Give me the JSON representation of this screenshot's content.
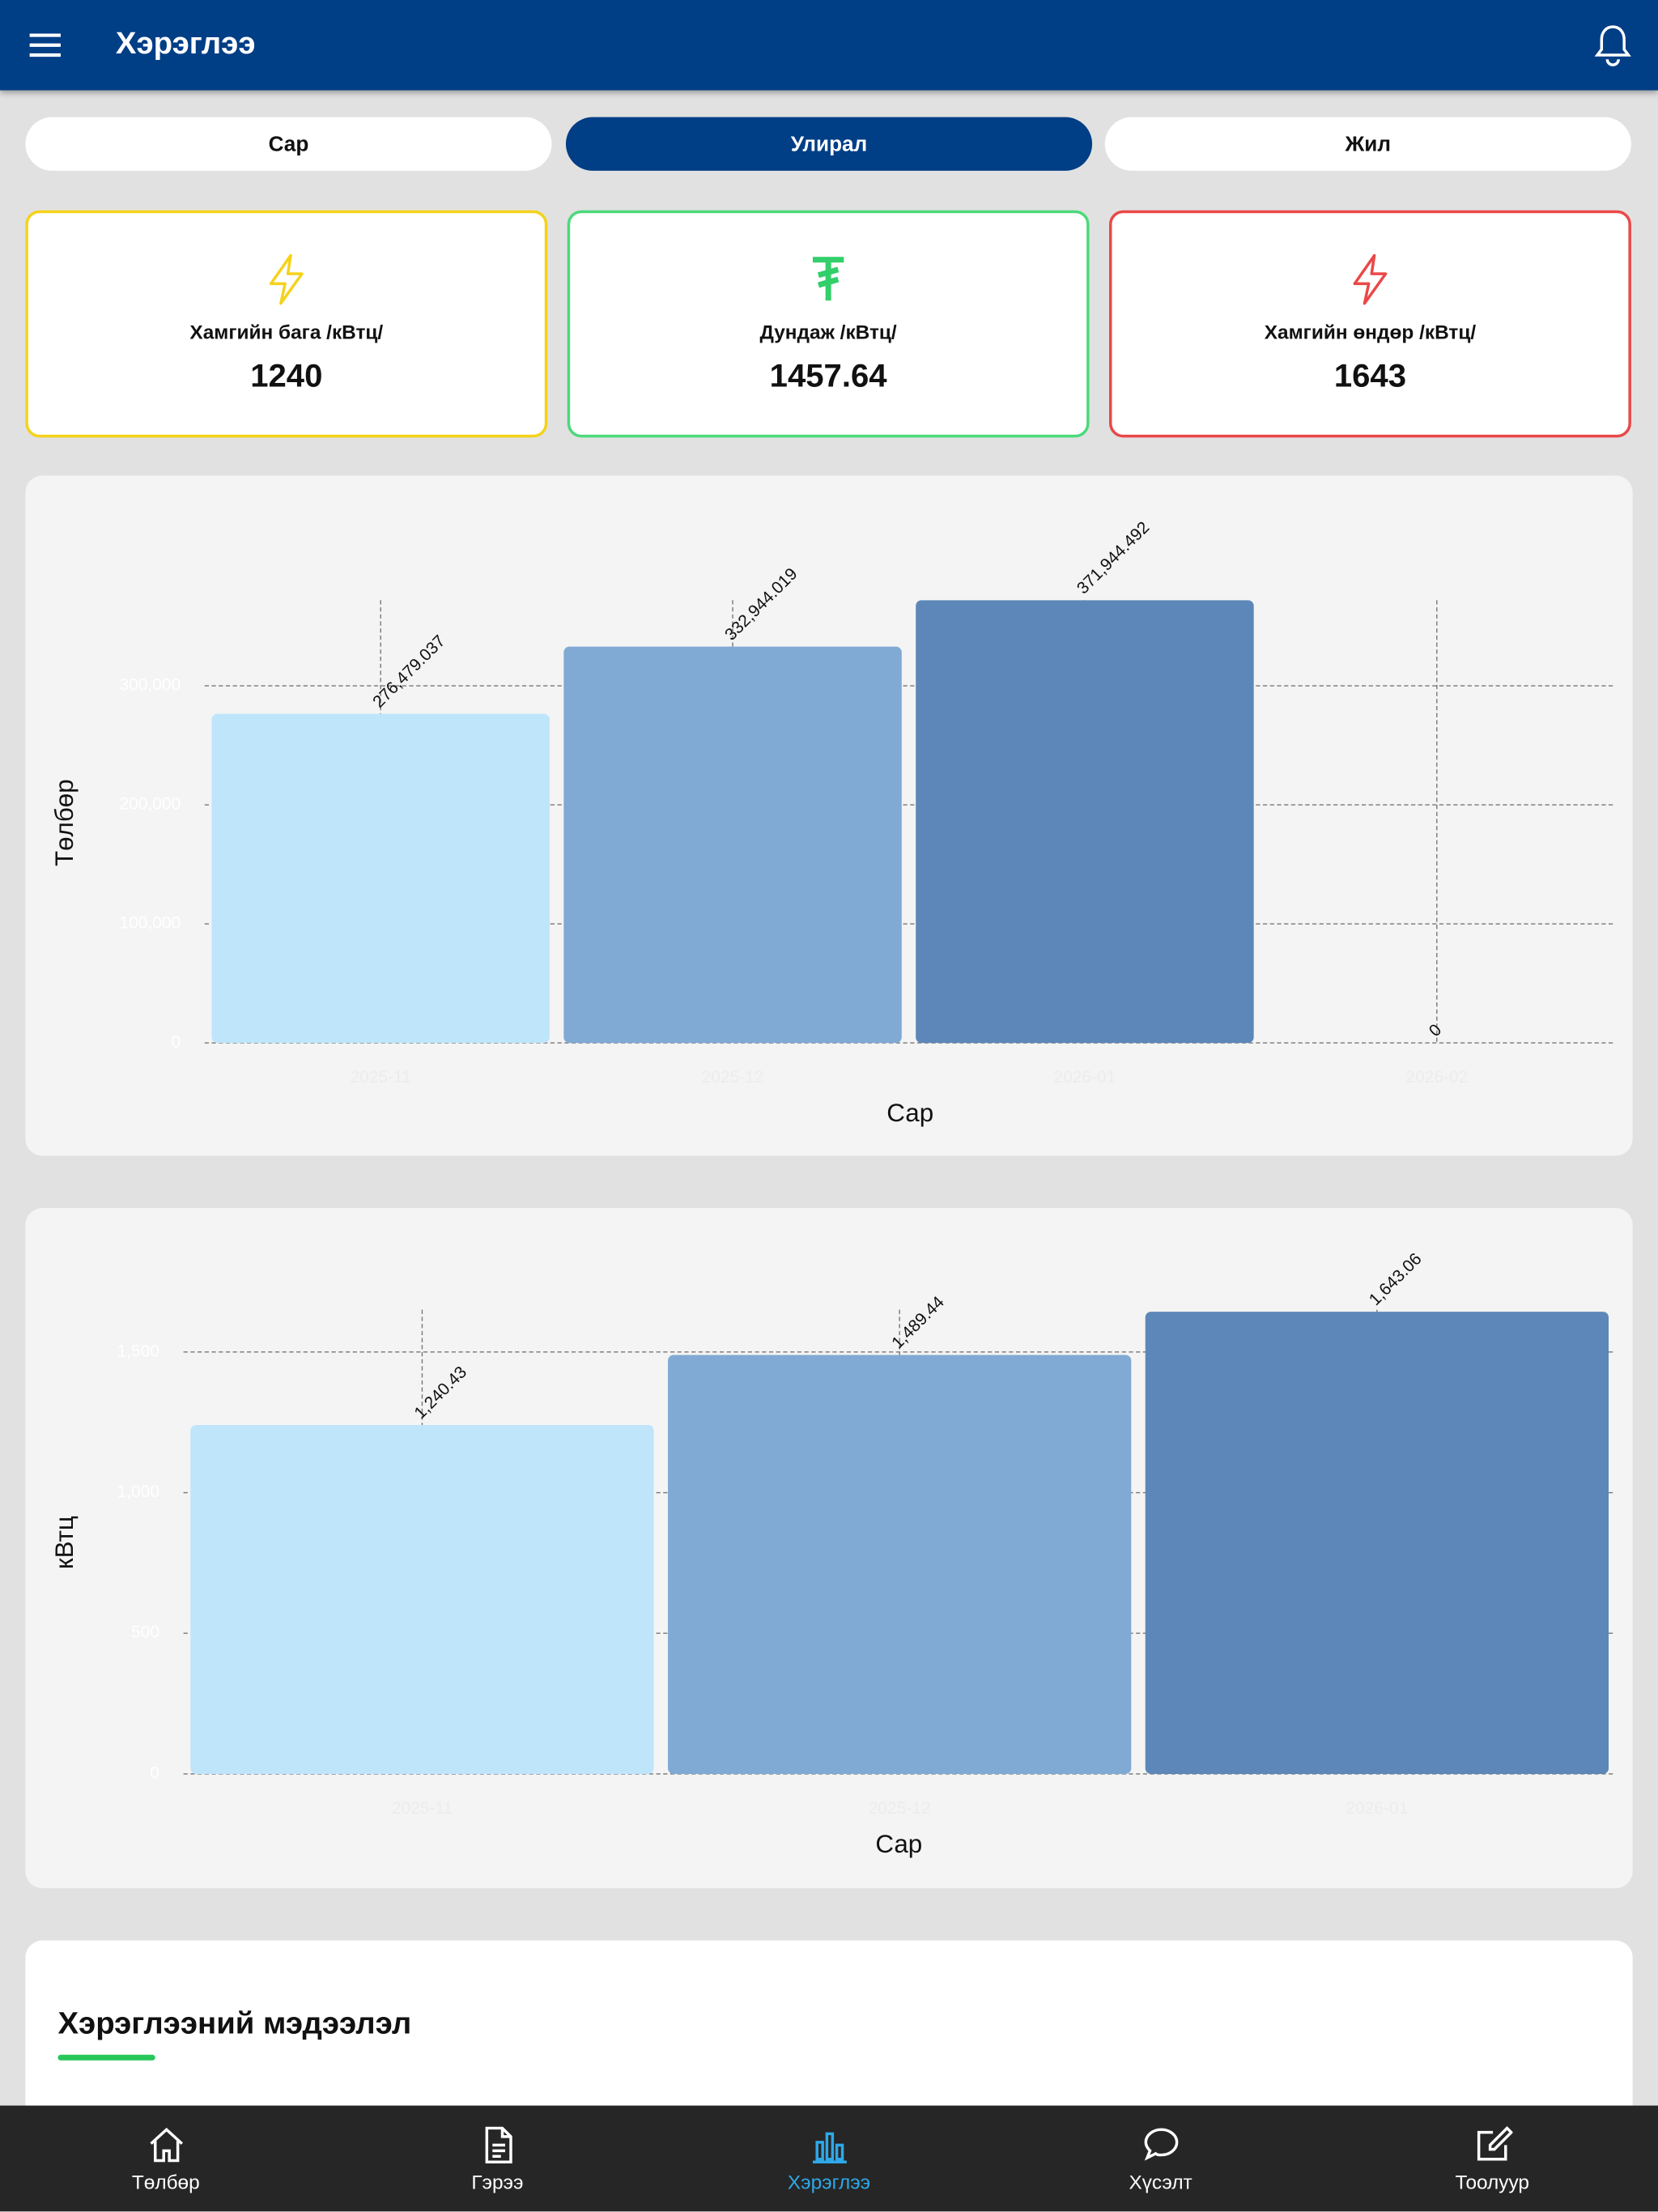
{
  "app_bar": {
    "title": "Хэрэглээ"
  },
  "tabs": [
    {
      "label": "Сар",
      "selected": false
    },
    {
      "label": "Улирал",
      "selected": true
    },
    {
      "label": "Жил",
      "selected": false
    }
  ],
  "stats": [
    {
      "label": "Хамгийн бага /кВтц/",
      "value": 1240
    },
    {
      "label": "Дундаж /кВтц/",
      "value": 1457.64
    },
    {
      "label": "Хамгийн өндөр /кВтц/",
      "value": 1643
    }
  ],
  "chart_data": [
    {
      "type": "bar",
      "ylabel": "Төлбөр",
      "xlabel": "Сар",
      "categories": [
        "2025-11",
        "2025-12",
        "2026-01",
        "2026-02"
      ],
      "values": [
        276479.037,
        332944.019,
        371944.492,
        0
      ],
      "value_labels": [
        "276,479.037",
        "332,944.019",
        "371,944.492",
        "0"
      ],
      "colors": [
        "#bfe5fb",
        "#80aad4",
        "#5c87b8",
        "#3f6aa0"
      ],
      "ylim": [
        0,
        372000
      ],
      "yticks": [
        0,
        {
          "value": 100000,
          "label": "100,000"
        },
        {
          "value": 200000,
          "label": "200,000"
        },
        {
          "value": 300000,
          "label": "300,000"
        }
      ],
      "grid": true
    },
    {
      "type": "bar",
      "ylabel": "кВтц",
      "xlabel": "Сар",
      "categories": [
        "2025-11",
        "2025-12",
        "2026-01"
      ],
      "values": [
        1240.43,
        1489.44,
        1643.06
      ],
      "value_labels": [
        "1,240.43",
        "1,489.44",
        "1,643.06"
      ],
      "colors": [
        "#bfe5fb",
        "#80aad4",
        "#5c87b8"
      ],
      "ylim": [
        0,
        1650
      ],
      "yticks": [
        0,
        500,
        {
          "value": 1000,
          "label": "1,000"
        },
        {
          "value": 1500,
          "label": "1,500"
        }
      ],
      "grid": true
    }
  ],
  "section": {
    "title": "Хэрэглээний мэдээлэл"
  },
  "nav": [
    {
      "label": "Төлбөр",
      "active": false
    },
    {
      "label": "Гэрээ",
      "active": false
    },
    {
      "label": "Хэрэглээ",
      "active": true
    },
    {
      "label": "Хүсэлт",
      "active": false
    },
    {
      "label": "Тоолуур",
      "active": false
    }
  ]
}
